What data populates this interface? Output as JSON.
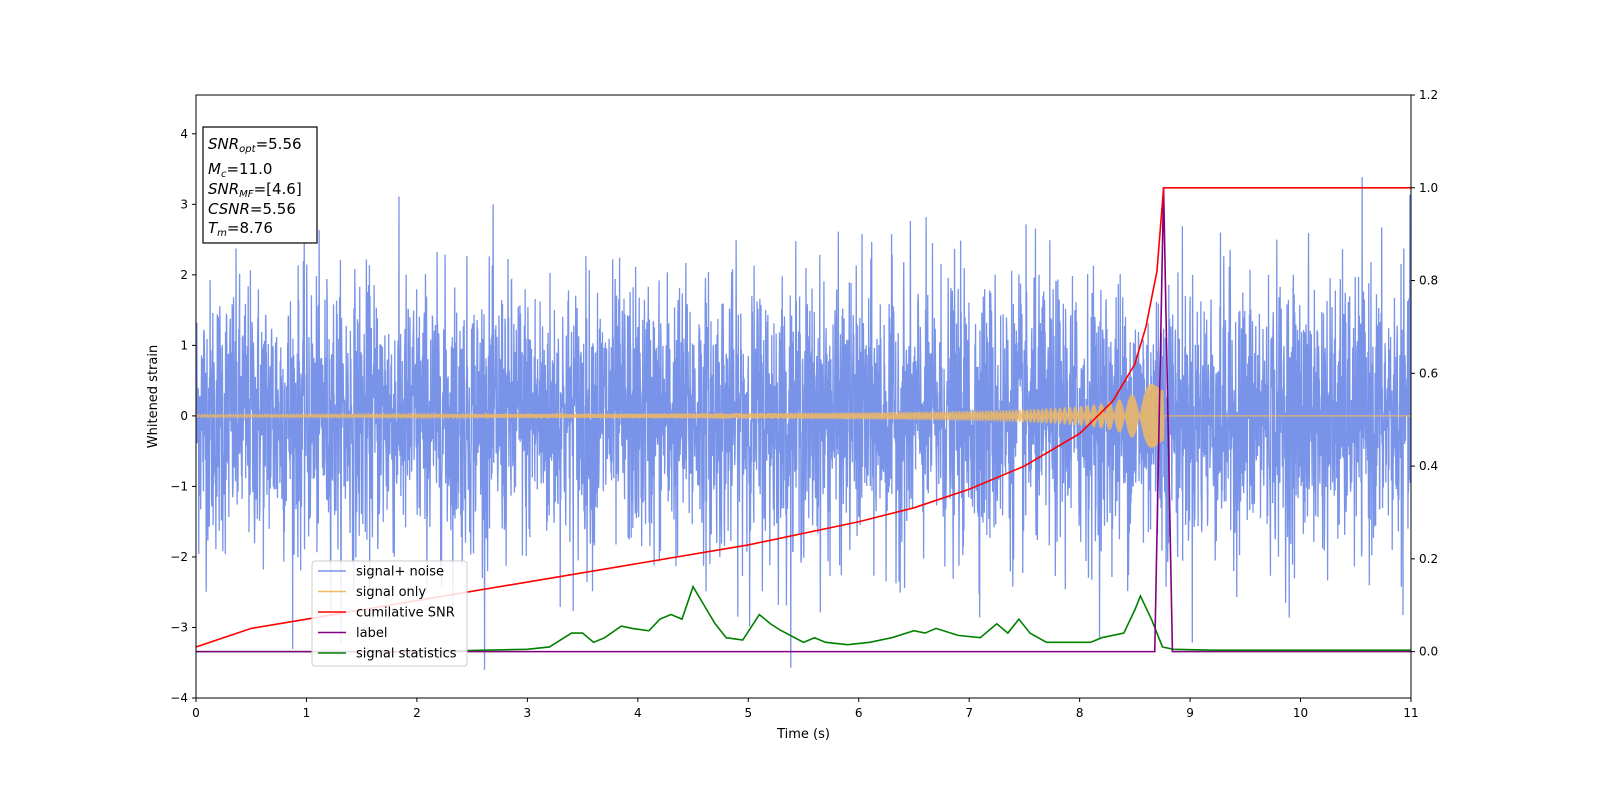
{
  "chart_data": {
    "type": "line",
    "xlabel": "Time (s)",
    "ylabel": "Whitened strain",
    "xlim": [
      0,
      11
    ],
    "ylim_left": [
      -4,
      4.55
    ],
    "ylim_right": [
      -0.1,
      1.2
    ],
    "x_ticks": [
      "0",
      "1",
      "2",
      "3",
      "4",
      "5",
      "6",
      "7",
      "8",
      "9",
      "10",
      "11"
    ],
    "y_ticks_left": [
      "−4",
      "−3",
      "−2",
      "−1",
      "0",
      "1",
      "2",
      "3",
      "4"
    ],
    "y_ticks_right": [
      "0.0",
      "0.2",
      "0.4",
      "0.6",
      "0.8",
      "1.0",
      "1.2"
    ],
    "grid": false,
    "legend_position": "lower-left",
    "info_box": [
      {
        "sym": "SNR",
        "sub": "opt",
        "val": "=5.56"
      },
      {
        "sym": "M",
        "sub": "c",
        "val": "=11.0"
      },
      {
        "sym": "SNR",
        "sub": "MF",
        "val": "=[4.6]"
      },
      {
        "sym": "CSNR",
        "sub": "",
        "val": "=5.56"
      },
      {
        "sym": "T",
        "sub": "m",
        "val": "=8.76"
      }
    ],
    "series": [
      {
        "name": "signal+ noise",
        "axis": "left",
        "color": "#7893e8",
        "description_values": {
          "noise_std": 1.0,
          "peak_max": 3.7,
          "peak_min": -3.6
        }
      },
      {
        "name": "signal only",
        "axis": "left",
        "color": "#f0b860",
        "chirp": {
          "start": 0,
          "end": 8.76,
          "amp_start": 0.02,
          "amp_end": 0.45
        }
      },
      {
        "name": "cumilative SNR",
        "axis": "right",
        "color": "#ff0000",
        "x": [
          0,
          0.5,
          1,
          2,
          3,
          4,
          5,
          6,
          6.5,
          7,
          7.5,
          8,
          8.3,
          8.5,
          8.6,
          8.7,
          8.76,
          11
        ],
        "y": [
          0.01,
          0.05,
          0.07,
          0.11,
          0.15,
          0.19,
          0.23,
          0.28,
          0.31,
          0.35,
          0.4,
          0.47,
          0.54,
          0.62,
          0.7,
          0.82,
          1.0,
          1.0
        ]
      },
      {
        "name": "label",
        "axis": "right",
        "color": "#800080",
        "x": [
          0,
          8.68,
          8.76,
          8.84,
          11
        ],
        "y": [
          0,
          0,
          1.0,
          0,
          0
        ]
      },
      {
        "name": "signal statistics",
        "axis": "right",
        "color": "#008000",
        "x": [
          0,
          1,
          2,
          3,
          3.2,
          3.4,
          3.5,
          3.6,
          3.7,
          3.85,
          3.95,
          4.1,
          4.2,
          4.3,
          4.4,
          4.5,
          4.6,
          4.7,
          4.8,
          4.95,
          5.1,
          5.2,
          5.3,
          5.5,
          5.6,
          5.7,
          5.9,
          6.1,
          6.3,
          6.5,
          6.6,
          6.7,
          6.9,
          7.1,
          7.25,
          7.35,
          7.45,
          7.55,
          7.7,
          7.9,
          8.1,
          8.2,
          8.4,
          8.5,
          8.55,
          8.65,
          8.75,
          8.85,
          9.2,
          10,
          11
        ],
        "y": [
          0.0,
          0.0,
          0.0,
          0.005,
          0.01,
          0.04,
          0.04,
          0.02,
          0.03,
          0.055,
          0.05,
          0.045,
          0.07,
          0.08,
          0.07,
          0.14,
          0.1,
          0.06,
          0.03,
          0.025,
          0.08,
          0.06,
          0.045,
          0.02,
          0.03,
          0.02,
          0.015,
          0.02,
          0.03,
          0.045,
          0.04,
          0.05,
          0.035,
          0.03,
          0.06,
          0.04,
          0.07,
          0.04,
          0.02,
          0.02,
          0.02,
          0.03,
          0.04,
          0.09,
          0.12,
          0.07,
          0.01,
          0.005,
          0.003,
          0.003,
          0.003
        ]
      }
    ]
  }
}
